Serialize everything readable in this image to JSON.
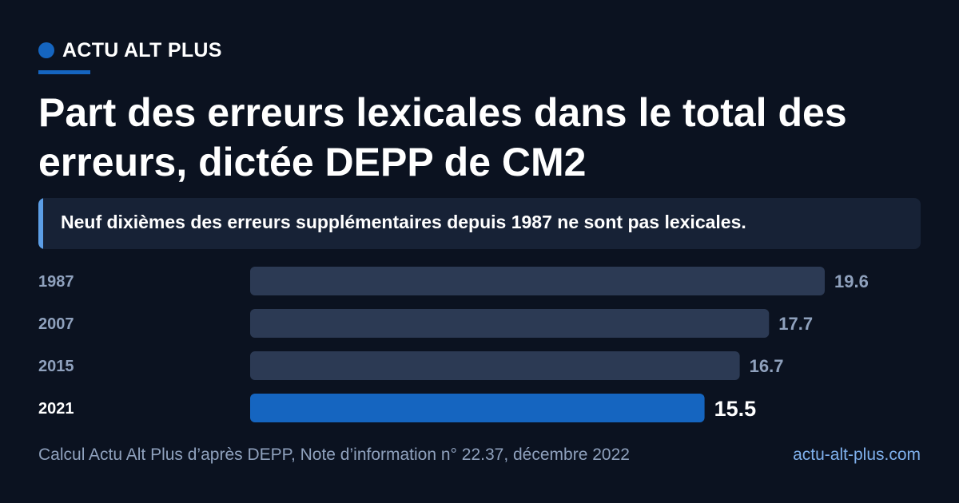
{
  "brand": {
    "name": "ACTU ALT PLUS"
  },
  "headline": {
    "title": "Part des erreurs lexicales dans le total des erreurs, dictée DEPP de CM2",
    "subtitle": "Neuf dixièmes des erreurs supplémentaires depuis 1987 ne sont pas lexicales."
  },
  "chart_data": {
    "type": "bar",
    "orientation": "horizontal",
    "categories": [
      "1987",
      "2007",
      "2015",
      "2021"
    ],
    "values": [
      19.6,
      17.7,
      16.7,
      15.5
    ],
    "highlight_index": 3,
    "xlim": [
      0,
      19.6
    ],
    "grid": false,
    "legend": "none",
    "colors": {
      "bar": "#2c3a54",
      "bar_highlight": "#1565c0",
      "label": "#8fa1bd",
      "label_highlight": "#ffffff"
    }
  },
  "footer": {
    "source": "Calcul Actu Alt Plus d’après DEPP, Note d’information n° 22.37, décembre 2022",
    "site": "actu-alt-plus.com"
  }
}
